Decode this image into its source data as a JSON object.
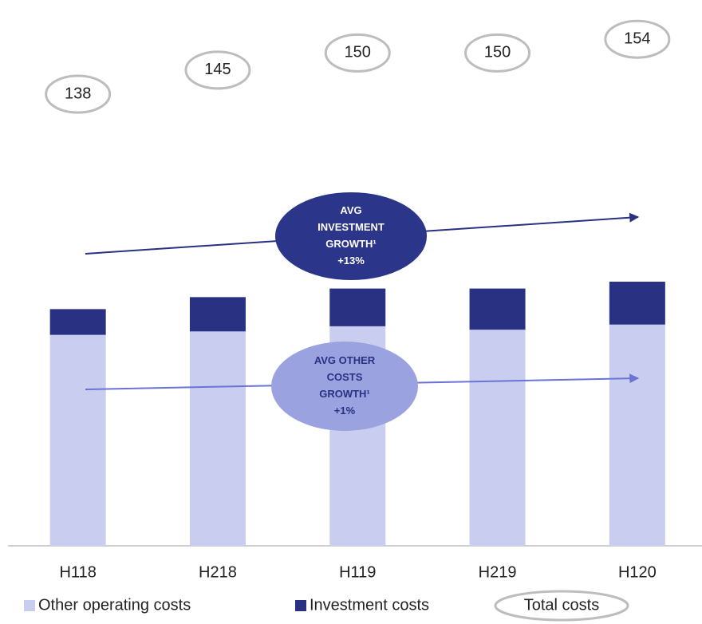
{
  "chart_data": {
    "type": "stacked-bar",
    "categories": [
      "H118",
      "H218",
      "H119",
      "H219",
      "H120"
    ],
    "series": [
      {
        "name": "Other operating costs",
        "color": "#c9cdef",
        "values": [
          123,
          125,
          128,
          126,
          129
        ]
      },
      {
        "name": "Investment costs",
        "color": "#283182",
        "values": [
          15,
          20,
          22,
          24,
          25
        ]
      }
    ],
    "totals_name": "Total costs",
    "totals": [
      138,
      145,
      150,
      150,
      154
    ],
    "annotations": [
      {
        "lines": [
          "AVG",
          "INVESTMENT",
          "GROWTH¹",
          "+13%"
        ],
        "color": "#2b3589"
      },
      {
        "lines": [
          "AVG  OTHER",
          "COSTS",
          "GROWTH¹",
          "+1%"
        ],
        "color": "#9ba2e0"
      }
    ]
  }
}
